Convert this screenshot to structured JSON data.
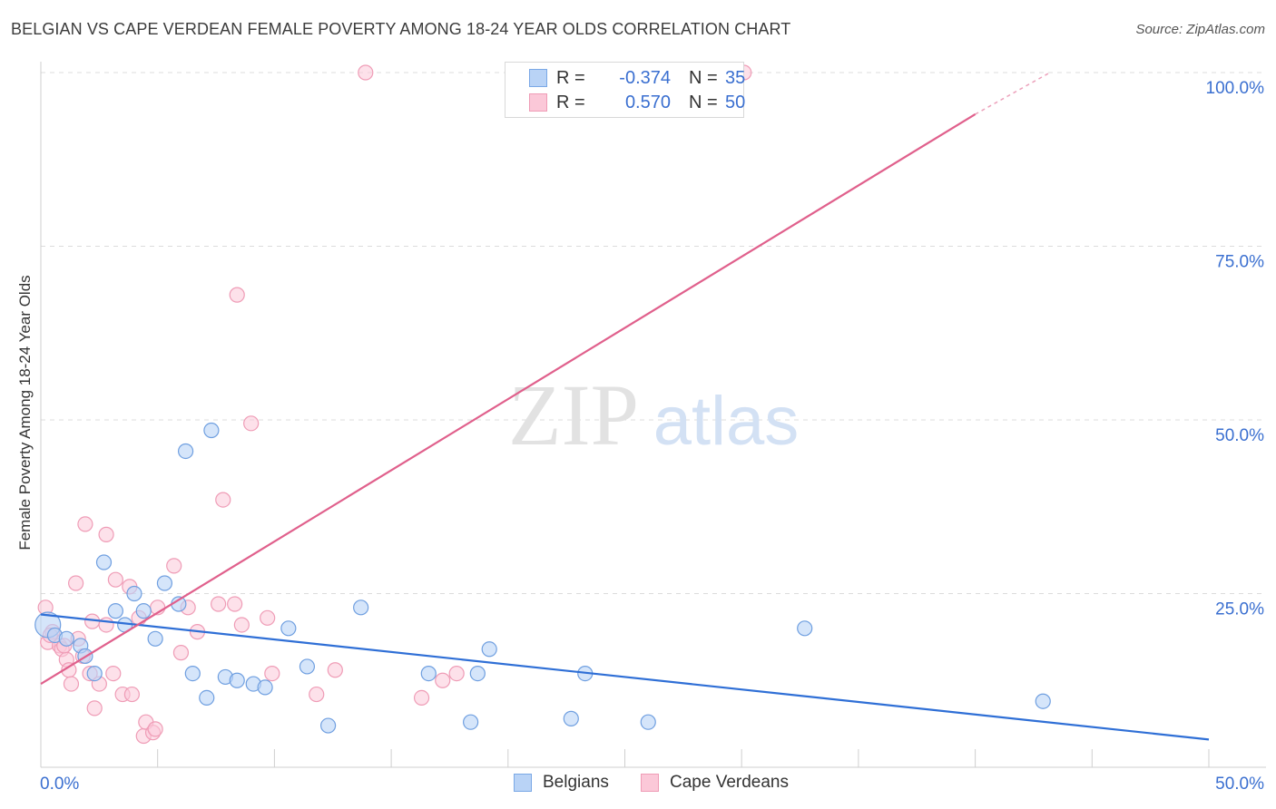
{
  "title": "BELGIAN VS CAPE VERDEAN FEMALE POVERTY AMONG 18-24 YEAR OLDS CORRELATION CHART",
  "source": "Source: ZipAtlas.com",
  "watermark": {
    "zip": "ZIP",
    "atlas": "atlas"
  },
  "legend": {
    "rows": [
      {
        "r_label": "R =",
        "r_value": "-0.374",
        "n_label": "N =",
        "n_value": "35",
        "fill": "#b9d3f6",
        "stroke": "#7aa8e6"
      },
      {
        "r_label": "R =",
        "r_value": "0.570",
        "n_label": "N =",
        "n_value": "50",
        "fill": "#fbc8d8",
        "stroke": "#ef9cb6"
      }
    ]
  },
  "bottom_legend": {
    "belgians": "Belgians",
    "cape_verdeans": "Cape Verdeans"
  },
  "chart_data": {
    "type": "scatter",
    "title": "BELGIAN VS CAPE VERDEAN FEMALE POVERTY AMONG 18-24 YEAR OLDS CORRELATION CHART",
    "xlabel": "",
    "ylabel": "Female Poverty Among 18-24 Year Olds",
    "xlim": [
      0,
      50
    ],
    "ylim": [
      0,
      100
    ],
    "x_tick_labels": [
      "0.0%",
      "50.0%"
    ],
    "y_tick_values": [
      25,
      50,
      75,
      100
    ],
    "y_tick_labels": [
      "25.0%",
      "50.0%",
      "75.0%",
      "100.0%"
    ],
    "grid": true,
    "legend_position": "top-center",
    "colors": {
      "belgians": "#2f6fd6",
      "belgians_fill": "#b9d3f6",
      "cape_verdeans": "#e0608c",
      "cape_verdeans_fill": "#fbc8d8",
      "tick_label": "#3a6fd0"
    },
    "series": [
      {
        "name": "Belgians",
        "r": -0.374,
        "n": 35,
        "trend": {
          "x": [
            0,
            50
          ],
          "y": [
            22.0,
            4.0
          ]
        },
        "points": [
          [
            0.3,
            20.5
          ],
          [
            0.6,
            19.0
          ],
          [
            1.1,
            18.5
          ],
          [
            1.7,
            17.5
          ],
          [
            1.9,
            16.0
          ],
          [
            2.3,
            13.5
          ],
          [
            2.7,
            29.5
          ],
          [
            3.2,
            22.5
          ],
          [
            3.6,
            20.5
          ],
          [
            4.0,
            25.0
          ],
          [
            4.4,
            22.5
          ],
          [
            4.9,
            18.5
          ],
          [
            5.3,
            26.5
          ],
          [
            5.9,
            23.5
          ],
          [
            6.2,
            45.5
          ],
          [
            6.5,
            13.5
          ],
          [
            7.1,
            10.0
          ],
          [
            7.3,
            48.5
          ],
          [
            7.9,
            13.0
          ],
          [
            8.4,
            12.5
          ],
          [
            9.1,
            12.0
          ],
          [
            9.6,
            11.5
          ],
          [
            10.6,
            20.0
          ],
          [
            11.4,
            14.5
          ],
          [
            12.3,
            6.0
          ],
          [
            13.7,
            23.0
          ],
          [
            16.6,
            13.5
          ],
          [
            18.4,
            6.5
          ],
          [
            18.7,
            13.5
          ],
          [
            19.2,
            17.0
          ],
          [
            22.7,
            7.0
          ],
          [
            23.3,
            13.5
          ],
          [
            26.0,
            6.5
          ],
          [
            32.7,
            20.0
          ],
          [
            42.9,
            9.5
          ]
        ]
      },
      {
        "name": "Cape Verdeans",
        "r": 0.57,
        "n": 50,
        "trend": {
          "x": [
            0,
            40.0
          ],
          "y": [
            12.0,
            94.0
          ]
        },
        "trend_dashed": {
          "x": [
            40.0,
            43.2
          ],
          "y": [
            94.0,
            100.0
          ]
        },
        "points": [
          [
            0.2,
            23.0
          ],
          [
            0.3,
            18.0
          ],
          [
            0.5,
            19.5
          ],
          [
            0.8,
            17.5
          ],
          [
            0.9,
            17.0
          ],
          [
            1.1,
            15.5
          ],
          [
            1.2,
            14.0
          ],
          [
            1.3,
            12.0
          ],
          [
            1.5,
            26.5
          ],
          [
            1.6,
            18.5
          ],
          [
            1.8,
            16.0
          ],
          [
            1.9,
            35.0
          ],
          [
            2.1,
            13.5
          ],
          [
            2.2,
            21.0
          ],
          [
            2.3,
            8.5
          ],
          [
            2.5,
            12.0
          ],
          [
            2.8,
            20.5
          ],
          [
            2.8,
            33.5
          ],
          [
            3.1,
            13.5
          ],
          [
            3.2,
            27.0
          ],
          [
            3.5,
            10.5
          ],
          [
            3.8,
            26.0
          ],
          [
            3.9,
            10.5
          ],
          [
            4.2,
            21.5
          ],
          [
            4.4,
            4.5
          ],
          [
            4.5,
            6.5
          ],
          [
            4.8,
            5.0
          ],
          [
            4.9,
            5.5
          ],
          [
            5.0,
            23.0
          ],
          [
            5.7,
            29.0
          ],
          [
            6.0,
            16.5
          ],
          [
            6.3,
            23.0
          ],
          [
            6.7,
            19.5
          ],
          [
            7.6,
            23.5
          ],
          [
            7.8,
            38.5
          ],
          [
            8.3,
            23.5
          ],
          [
            8.4,
            68.0
          ],
          [
            8.6,
            20.5
          ],
          [
            9.0,
            49.5
          ],
          [
            9.7,
            21.5
          ],
          [
            9.9,
            13.5
          ],
          [
            11.8,
            10.5
          ],
          [
            12.6,
            14.0
          ],
          [
            13.9,
            100.0
          ],
          [
            16.3,
            10.0
          ],
          [
            17.2,
            12.5
          ],
          [
            17.8,
            13.5
          ],
          [
            30.1,
            100.0
          ],
          [
            0.4,
            19.0
          ],
          [
            1.0,
            17.5
          ]
        ]
      }
    ]
  }
}
